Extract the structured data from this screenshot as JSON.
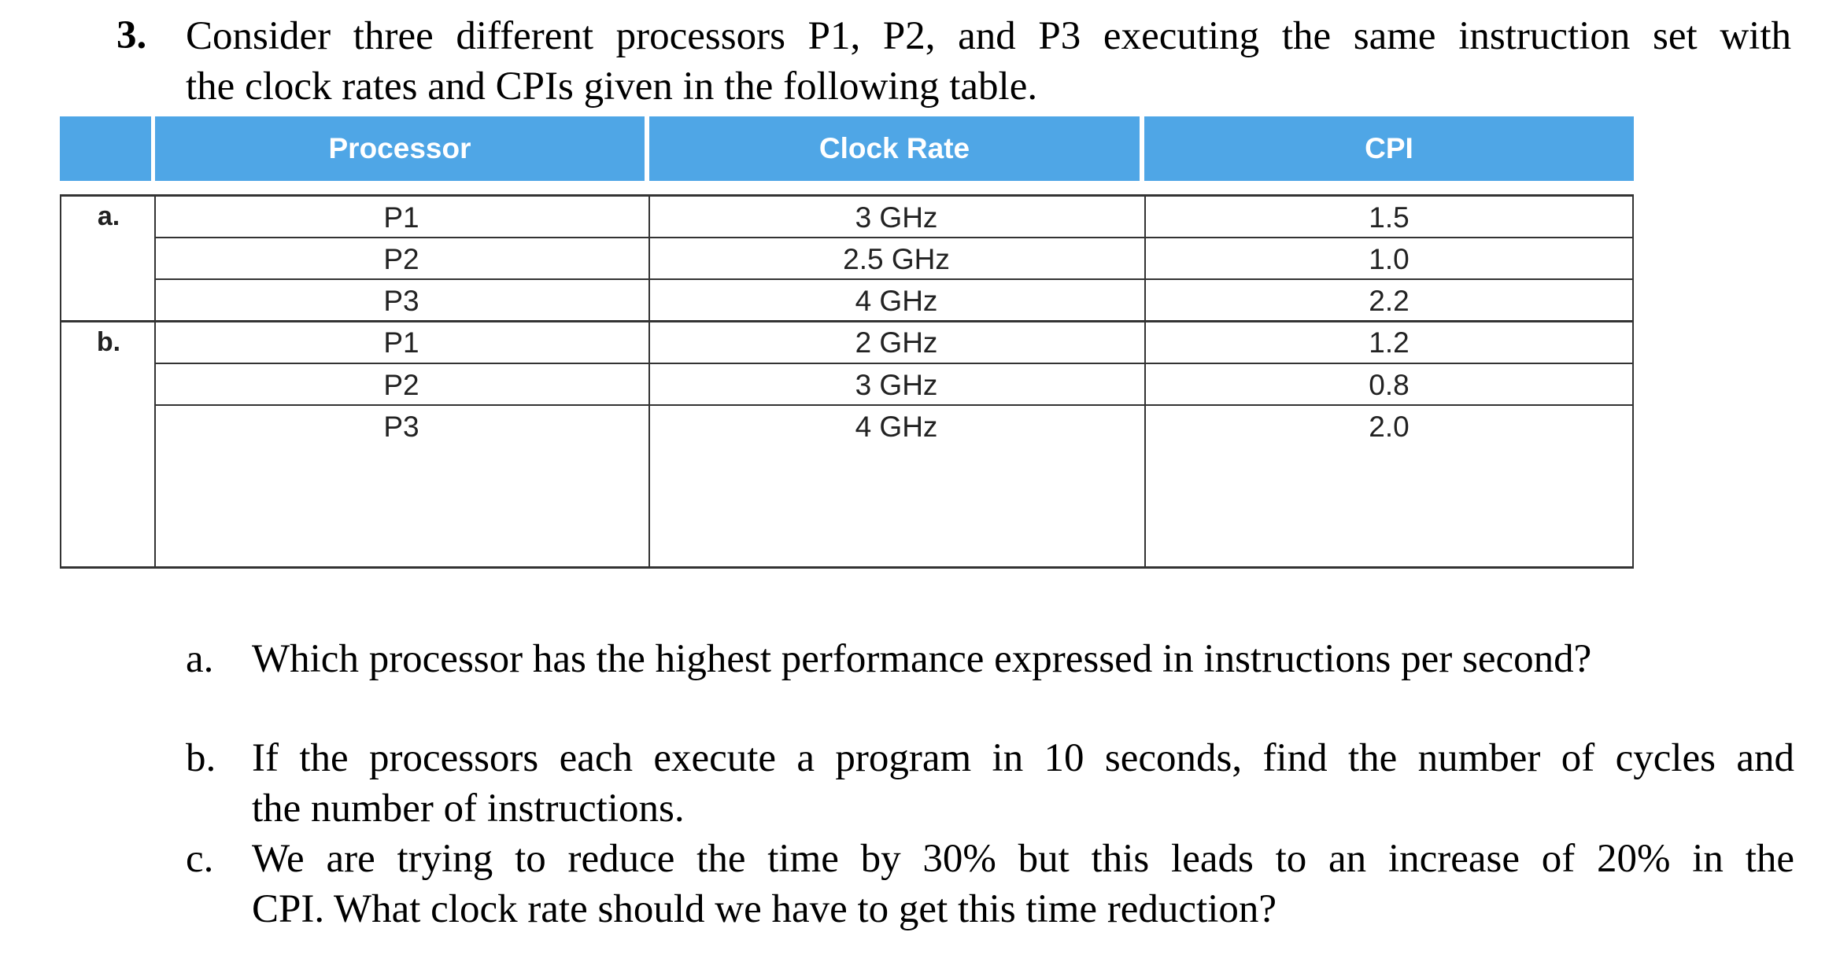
{
  "problem": {
    "number": "3.",
    "intro_lines": [
      "Consider three different processors P1, P2, and P3 executing the same instruction set with",
      "the clock rates and CPIs given in the following table."
    ]
  },
  "table": {
    "headers": [
      "",
      "Processor",
      "Clock Rate",
      "CPI"
    ],
    "groups": [
      {
        "label": "a.",
        "rows": [
          {
            "processor": "P1",
            "clock_rate": "3 GHz",
            "cpi": "1.5"
          },
          {
            "processor": "P2",
            "clock_rate": "2.5 GHz",
            "cpi": "1.0"
          },
          {
            "processor": "P3",
            "clock_rate": "4 GHz",
            "cpi": "2.2"
          }
        ]
      },
      {
        "label": "b.",
        "rows": [
          {
            "processor": "P1",
            "clock_rate": "2 GHz",
            "cpi": "1.2"
          },
          {
            "processor": "P2",
            "clock_rate": "3 GHz",
            "cpi": "0.8"
          },
          {
            "processor": "P3",
            "clock_rate": "4 GHz",
            "cpi": "2.0"
          }
        ]
      }
    ],
    "header_color": "#4fa6e6"
  },
  "questions": [
    {
      "letter": "a.",
      "lines": [
        "Which processor has the highest performance expressed in instructions per second?"
      ]
    },
    {
      "letter": "b.",
      "lines": [
        "If the processors each execute a program in 10 seconds, find the number of cycles and",
        "the number of instructions."
      ]
    },
    {
      "letter": "c.",
      "lines": [
        "We are trying to reduce the time by 30% but this leads to an increase of 20% in the",
        "CPI. What clock rate should we have to get this time reduction?"
      ]
    }
  ]
}
